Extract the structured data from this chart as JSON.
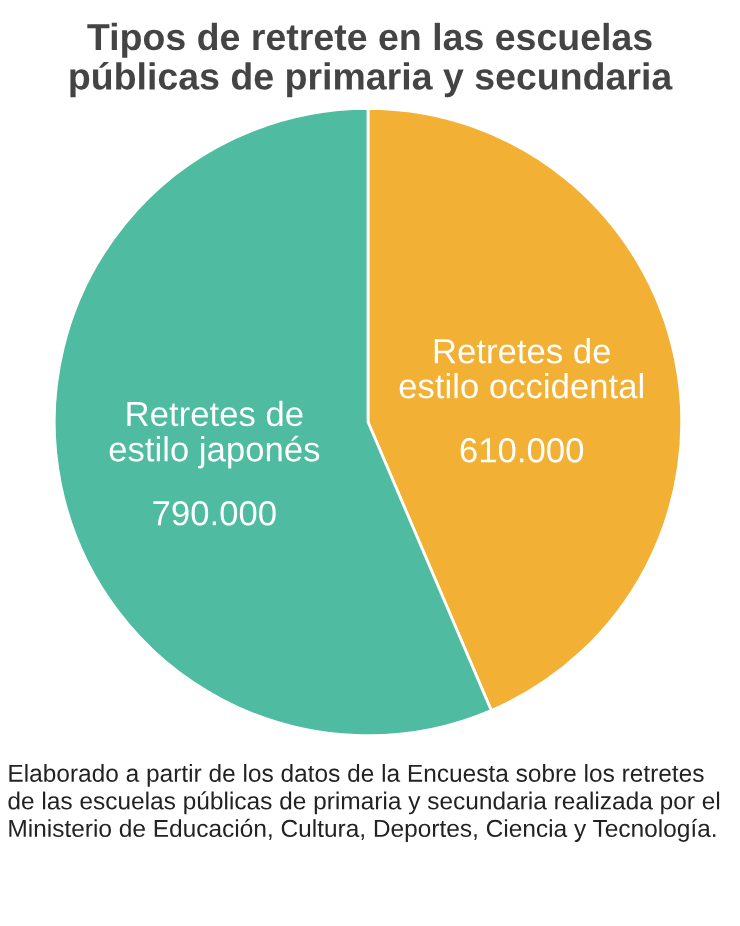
{
  "chart_data": {
    "type": "pie",
    "title": "Tipos de retrete en las escuelas\npúblicas de primaria y secundaria",
    "categories": [
      "Retretes de\nestilo occidental",
      "Retretes de\nestilo japonés"
    ],
    "values": [
      610000,
      790000
    ],
    "value_labels": [
      "610.000",
      "790.000"
    ],
    "colors": [
      "#f2b134",
      "#4fbba0"
    ],
    "annotations": [
      "Elaborado a partir de los datos de la Encuesta sobre los retretes de las escuelas públicas de primaria y secundaria realizada por el Ministerio de Educación, Cultura, Deportes, Ciencia y Tecnología."
    ]
  }
}
